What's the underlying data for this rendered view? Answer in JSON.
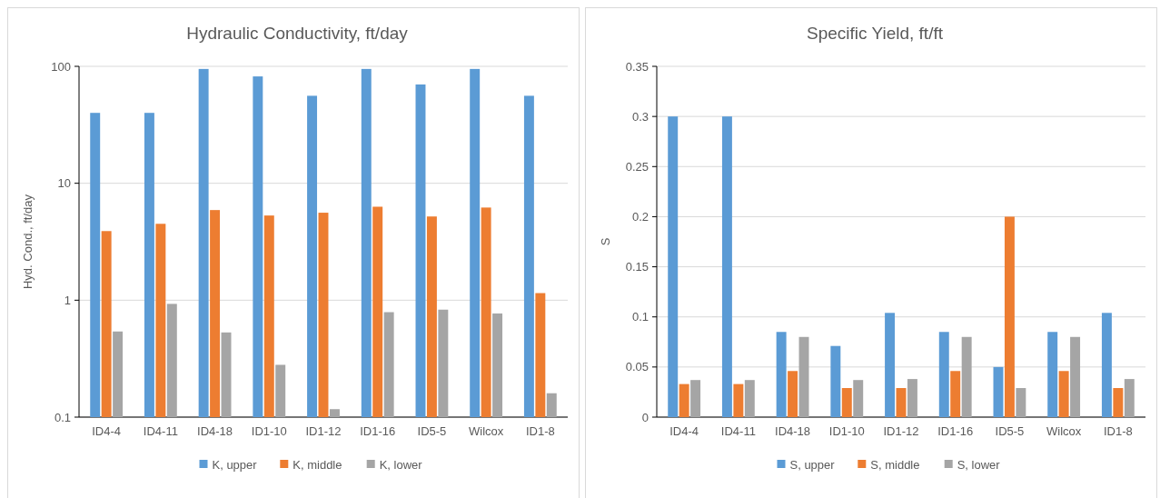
{
  "chart_data": [
    {
      "type": "bar",
      "title": "Hydraulic Conductivity, ft/day",
      "ylabel": "Hyd. Cond., ft/day",
      "log": true,
      "ylim": [
        0.1,
        100
      ],
      "yticks": [
        0.1,
        1,
        10,
        100
      ],
      "grid": "y",
      "legend": "bottom",
      "categories": [
        "ID4-4",
        "ID4-11",
        "ID4-18",
        "ID1-10",
        "ID1-12",
        "ID1-16",
        "ID5-5",
        "Wilcox",
        "ID1-8"
      ],
      "series": [
        {
          "name": "K, upper",
          "color": "#5b9bd5",
          "values": [
            40,
            40,
            95,
            82,
            56,
            95,
            70,
            95,
            56
          ]
        },
        {
          "name": "K, middle",
          "color": "#ed7d31",
          "values": [
            3.9,
            4.5,
            5.9,
            5.3,
            5.6,
            6.3,
            5.2,
            6.2,
            1.15
          ]
        },
        {
          "name": "K, lower",
          "color": "#a5a5a5",
          "values": [
            0.54,
            0.93,
            0.53,
            0.28,
            0.117,
            0.79,
            0.83,
            0.77,
            0.16
          ]
        }
      ]
    },
    {
      "type": "bar",
      "title": "Specific Yield, ft/ft",
      "ylabel": "S",
      "ylim": [
        0,
        0.35
      ],
      "yticks": [
        0,
        0.05,
        0.1,
        0.15,
        0.2,
        0.25,
        0.3,
        0.35
      ],
      "grid": "y",
      "legend": "bottom",
      "categories": [
        "ID4-4",
        "ID4-11",
        "ID4-18",
        "ID1-10",
        "ID1-12",
        "ID1-16",
        "ID5-5",
        "Wilcox",
        "ID1-8"
      ],
      "series": [
        {
          "name": "S, upper",
          "color": "#5b9bd5",
          "values": [
            0.3,
            0.3,
            0.085,
            0.071,
            0.104,
            0.085,
            0.05,
            0.085,
            0.104
          ]
        },
        {
          "name": "S, middle",
          "color": "#ed7d31",
          "values": [
            0.033,
            0.033,
            0.046,
            0.029,
            0.029,
            0.046,
            0.2,
            0.046,
            0.029
          ]
        },
        {
          "name": "S, lower",
          "color": "#a5a5a5",
          "values": [
            0.037,
            0.037,
            0.08,
            0.037,
            0.038,
            0.08,
            0.029,
            0.08,
            0.038
          ]
        }
      ]
    }
  ]
}
